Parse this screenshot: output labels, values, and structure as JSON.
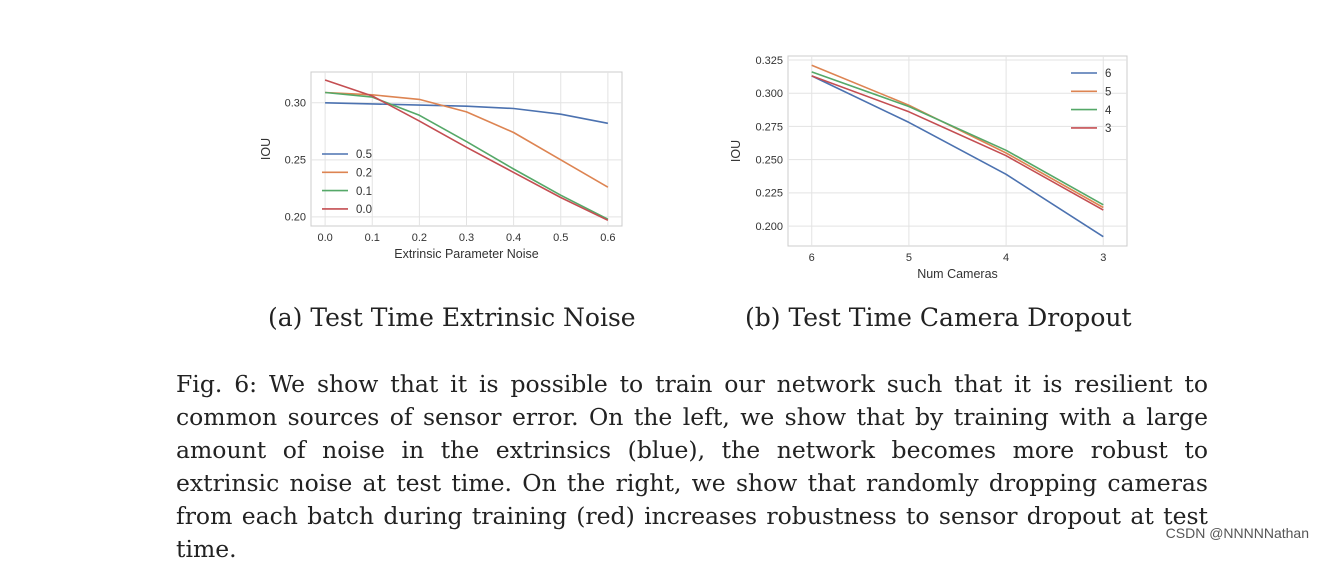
{
  "captions": {
    "sub_a": "(a) Test Time Extrinsic Noise",
    "sub_b": "(b) Test Time Camera Dropout",
    "figure": "Fig. 6: We show that it is possible to train our network such that it is resilient to common sources of sensor error. On the left, we show that by training with a large amount of noise in the extrinsics (blue), the network becomes more robust to extrinsic noise at test time. On the right, we show that randomly dropping cameras from each batch during training (red) increases robustness to sensor dropout at test time."
  },
  "watermark": "CSDN @NNNNNathan",
  "chart_data": [
    {
      "type": "line",
      "xlabel": "Extrinsic Parameter Noise",
      "ylabel": "IOU",
      "x": [
        0.0,
        0.1,
        0.2,
        0.3,
        0.4,
        0.5,
        0.6
      ],
      "x_tick_labels": [
        "0.0",
        "0.1",
        "0.2",
        "0.3",
        "0.4",
        "0.5",
        "0.6"
      ],
      "xlim": [
        -0.03,
        0.63
      ],
      "ylim": [
        0.192,
        0.327
      ],
      "y_ticks": [
        0.2,
        0.25,
        0.3
      ],
      "y_tick_labels": [
        "0.20",
        "0.25",
        "0.30"
      ],
      "grid": true,
      "legend_position": "lower-left",
      "series": [
        {
          "name": "0.5",
          "color": "#4c72b0",
          "values": [
            0.3,
            0.299,
            0.298,
            0.297,
            0.295,
            0.29,
            0.282
          ]
        },
        {
          "name": "0.2",
          "color": "#dd8452",
          "values": [
            0.309,
            0.307,
            0.303,
            0.292,
            0.274,
            0.25,
            0.226
          ]
        },
        {
          "name": "0.1",
          "color": "#55a868",
          "values": [
            0.309,
            0.305,
            0.289,
            0.266,
            0.242,
            0.219,
            0.198
          ]
        },
        {
          "name": "0.0",
          "color": "#c44e52",
          "values": [
            0.32,
            0.306,
            0.284,
            0.261,
            0.239,
            0.217,
            0.197
          ]
        }
      ]
    },
    {
      "type": "line",
      "xlabel": "Num Cameras",
      "ylabel": "IOU",
      "categories": [
        "6",
        "5",
        "4",
        "3"
      ],
      "ylim": [
        0.185,
        0.328
      ],
      "y_ticks": [
        0.2,
        0.225,
        0.25,
        0.275,
        0.3,
        0.325
      ],
      "y_tick_labels": [
        "0.200",
        "0.225",
        "0.250",
        "0.275",
        "0.300",
        "0.325"
      ],
      "grid": true,
      "legend_position": "upper-right",
      "series": [
        {
          "name": "6",
          "color": "#4c72b0",
          "values": [
            0.313,
            0.278,
            0.239,
            0.192
          ]
        },
        {
          "name": "5",
          "color": "#dd8452",
          "values": [
            0.321,
            0.291,
            0.255,
            0.214
          ]
        },
        {
          "name": "4",
          "color": "#55a868",
          "values": [
            0.316,
            0.29,
            0.257,
            0.216
          ]
        },
        {
          "name": "3",
          "color": "#c44e52",
          "values": [
            0.313,
            0.286,
            0.253,
            0.212
          ]
        }
      ]
    }
  ]
}
